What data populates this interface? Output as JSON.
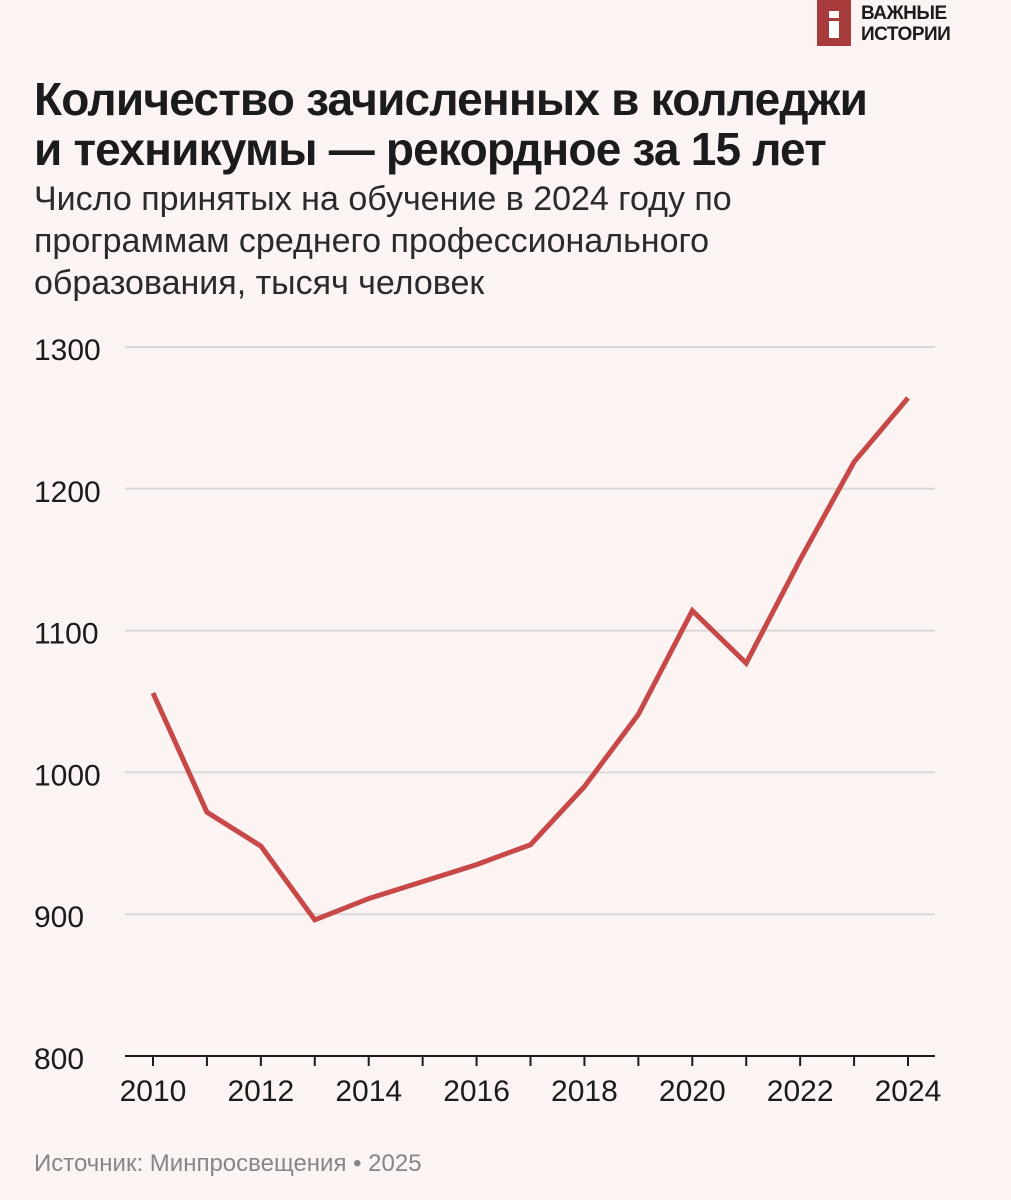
{
  "logo": {
    "line1": "ВАЖНЫЕ",
    "line2": "ИСТОРИИ"
  },
  "title_lines": [
    "Количество зачисленных в колледжи",
    "и техникумы — рекордное за 15 лет"
  ],
  "subtitle_lines": [
    "Число принятых на обучение в 2024 году по",
    "программам среднего профессионального",
    "образования, тысяч человек"
  ],
  "source": "Источник: Минпросвещения • 2025",
  "colors": {
    "line": "#c84848",
    "grid": "#dcd7d8",
    "axis": "#1b1b1b",
    "background": "#fcf3f3",
    "brand": "#a83c3c"
  },
  "chart_data": {
    "type": "line",
    "title": "Количество зачисленных в колледжи и техникумы — рекордное за 15 лет",
    "ylabel": "",
    "xlabel": "",
    "x": [
      2010,
      2011,
      2012,
      2013,
      2014,
      2015,
      2016,
      2017,
      2018,
      2019,
      2020,
      2021,
      2022,
      2023,
      2024
    ],
    "series": [
      {
        "values": [
          1056,
          972,
          948,
          896,
          911,
          923,
          935,
          949,
          990,
          1041,
          1114,
          1077,
          1150,
          1219,
          1264
        ]
      }
    ],
    "xlim": [
      2010,
      2024
    ],
    "ylim": [
      800,
      1300
    ],
    "yticks": [
      800,
      900,
      1000,
      1100,
      1200,
      1300
    ],
    "xticks": [
      2010,
      2012,
      2014,
      2016,
      2018,
      2020,
      2022,
      2024
    ],
    "grid": true
  }
}
